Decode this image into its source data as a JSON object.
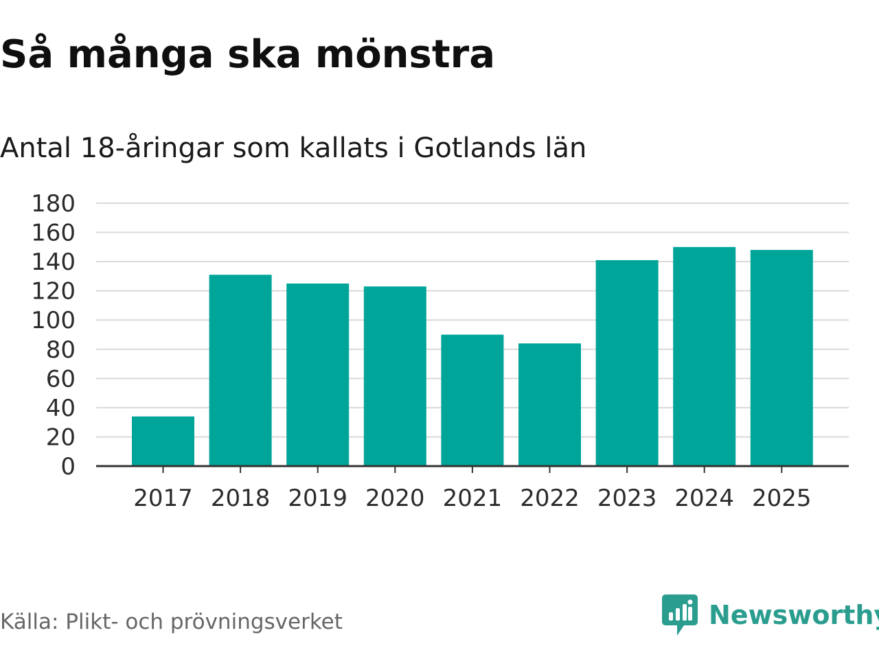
{
  "title": "Så många ska mönstra",
  "subtitle": "Antal 18-åringar som kallats i Gotlands län",
  "source": "Källa: Plikt- och prövningsverket",
  "brand": {
    "name": "Newsworthy",
    "icon": "newsworthy-logo-icon",
    "color": "#2a9d8f"
  },
  "colors": {
    "bar": "#00a59a",
    "grid": "#d9d9d9",
    "axis": "#333333"
  },
  "chart_data": {
    "type": "bar",
    "title": "Så många ska mönstra",
    "subtitle": "Antal 18-åringar som kallats i Gotlands län",
    "xlabel": "",
    "ylabel": "",
    "categories": [
      "2017",
      "2018",
      "2019",
      "2020",
      "2021",
      "2022",
      "2023",
      "2024",
      "2025"
    ],
    "values": [
      34,
      131,
      125,
      123,
      90,
      84,
      141,
      150,
      148
    ],
    "ylim": [
      0,
      180
    ],
    "yticks": [
      "0",
      "20",
      "40",
      "60",
      "80",
      "100",
      "120",
      "140",
      "160",
      "180"
    ],
    "grid": true,
    "legend": "none"
  }
}
